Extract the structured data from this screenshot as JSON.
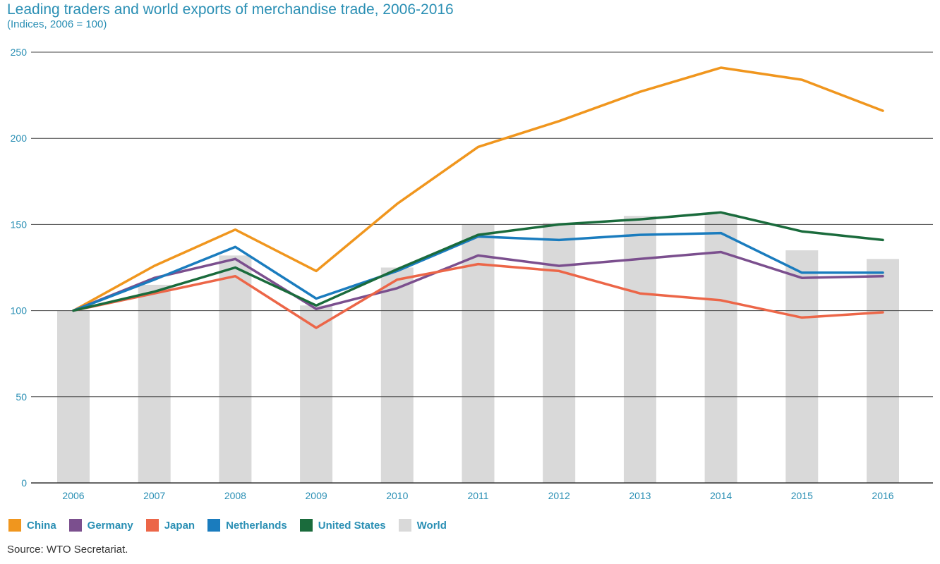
{
  "chart_data": {
    "type": "bar+line",
    "title": "Leading traders and world exports of merchandise trade, 2006-2016",
    "subtitle": "(Indices, 2006 = 100)",
    "categories": [
      "2006",
      "2007",
      "2008",
      "2009",
      "2010",
      "2011",
      "2012",
      "2013",
      "2014",
      "2015",
      "2016"
    ],
    "ylim": [
      0,
      250
    ],
    "yticks": [
      0,
      50,
      100,
      150,
      200,
      250
    ],
    "grid": true,
    "legend_position": "bottom",
    "bars": {
      "name": "World",
      "color": "#d9d9d9",
      "values": [
        100,
        115,
        132,
        103,
        125,
        150,
        151,
        155,
        156,
        135,
        130
      ]
    },
    "series": [
      {
        "name": "China",
        "color": "#f0961e",
        "values": [
          100,
          126,
          147,
          123,
          162,
          195,
          210,
          227,
          241,
          234,
          216
        ]
      },
      {
        "name": "Germany",
        "color": "#7b4f8e",
        "values": [
          100,
          119,
          130,
          101,
          113,
          132,
          126,
          130,
          134,
          119,
          120
        ]
      },
      {
        "name": "Japan",
        "color": "#ec6648",
        "values": [
          100,
          110,
          120,
          90,
          118,
          127,
          123,
          110,
          106,
          96,
          99
        ]
      },
      {
        "name": "Netherlands",
        "color": "#1a7cbe",
        "values": [
          100,
          118,
          137,
          107,
          123,
          143,
          141,
          144,
          145,
          122,
          122
        ]
      },
      {
        "name": "United States",
        "color": "#1a6b3c",
        "values": [
          100,
          111,
          125,
          103,
          124,
          144,
          150,
          153,
          157,
          146,
          141
        ]
      }
    ],
    "legend": [
      {
        "name": "China",
        "color": "#f0961e"
      },
      {
        "name": "Germany",
        "color": "#7b4f8e"
      },
      {
        "name": "Japan",
        "color": "#ec6648"
      },
      {
        "name": "Netherlands",
        "color": "#1a7cbe"
      },
      {
        "name": "United States",
        "color": "#1a6b3c"
      },
      {
        "name": "World",
        "color": "#d9d9d9"
      }
    ]
  },
  "source": "Source: WTO Secretariat."
}
